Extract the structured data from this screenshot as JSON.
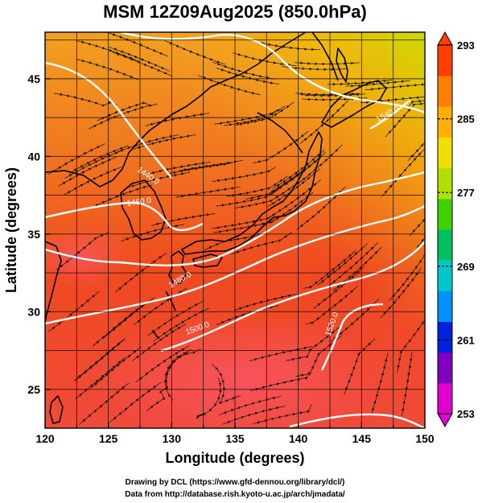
{
  "chart_data": {
    "type": "heatmap",
    "title": "MSM 12Z09Aug2025 (850.0hPa)",
    "xlabel": "Longitude (degrees)",
    "ylabel": "Latitude  (degrees)",
    "xlim": [
      120,
      150
    ],
    "ylim": [
      22.5,
      48
    ],
    "xticks": [
      "120",
      "125",
      "130",
      "135",
      "140",
      "145",
      "150"
    ],
    "yticks": [
      "25",
      "30",
      "35",
      "40",
      "45"
    ],
    "grid": true,
    "colorbar": {
      "ticks": [
        "293",
        "285",
        "277",
        "269",
        "261",
        "253"
      ],
      "range": [
        253,
        293
      ],
      "colors": [
        "#e000d0",
        "#8000c0",
        "#0020e0",
        "#0090ff",
        "#00c8c8",
        "#00c060",
        "#40d000",
        "#b0e000",
        "#f0e000",
        "#ffb000",
        "#ff8000",
        "#ff4000"
      ]
    },
    "contours": [
      {
        "label": "1440.0"
      },
      {
        "label": "1460.0"
      },
      {
        "label": "1480.0"
      },
      {
        "label": "1500.0"
      },
      {
        "label": "1520.0"
      },
      {
        "label": "1540.0"
      }
    ]
  },
  "credits": {
    "line1": "Drawing by DCL (https://www.gfd-dennou.org/library/dcl/)",
    "line2": "Data from http://database.rish.kyoto-u.ac.jp/arch/jmadata/"
  }
}
